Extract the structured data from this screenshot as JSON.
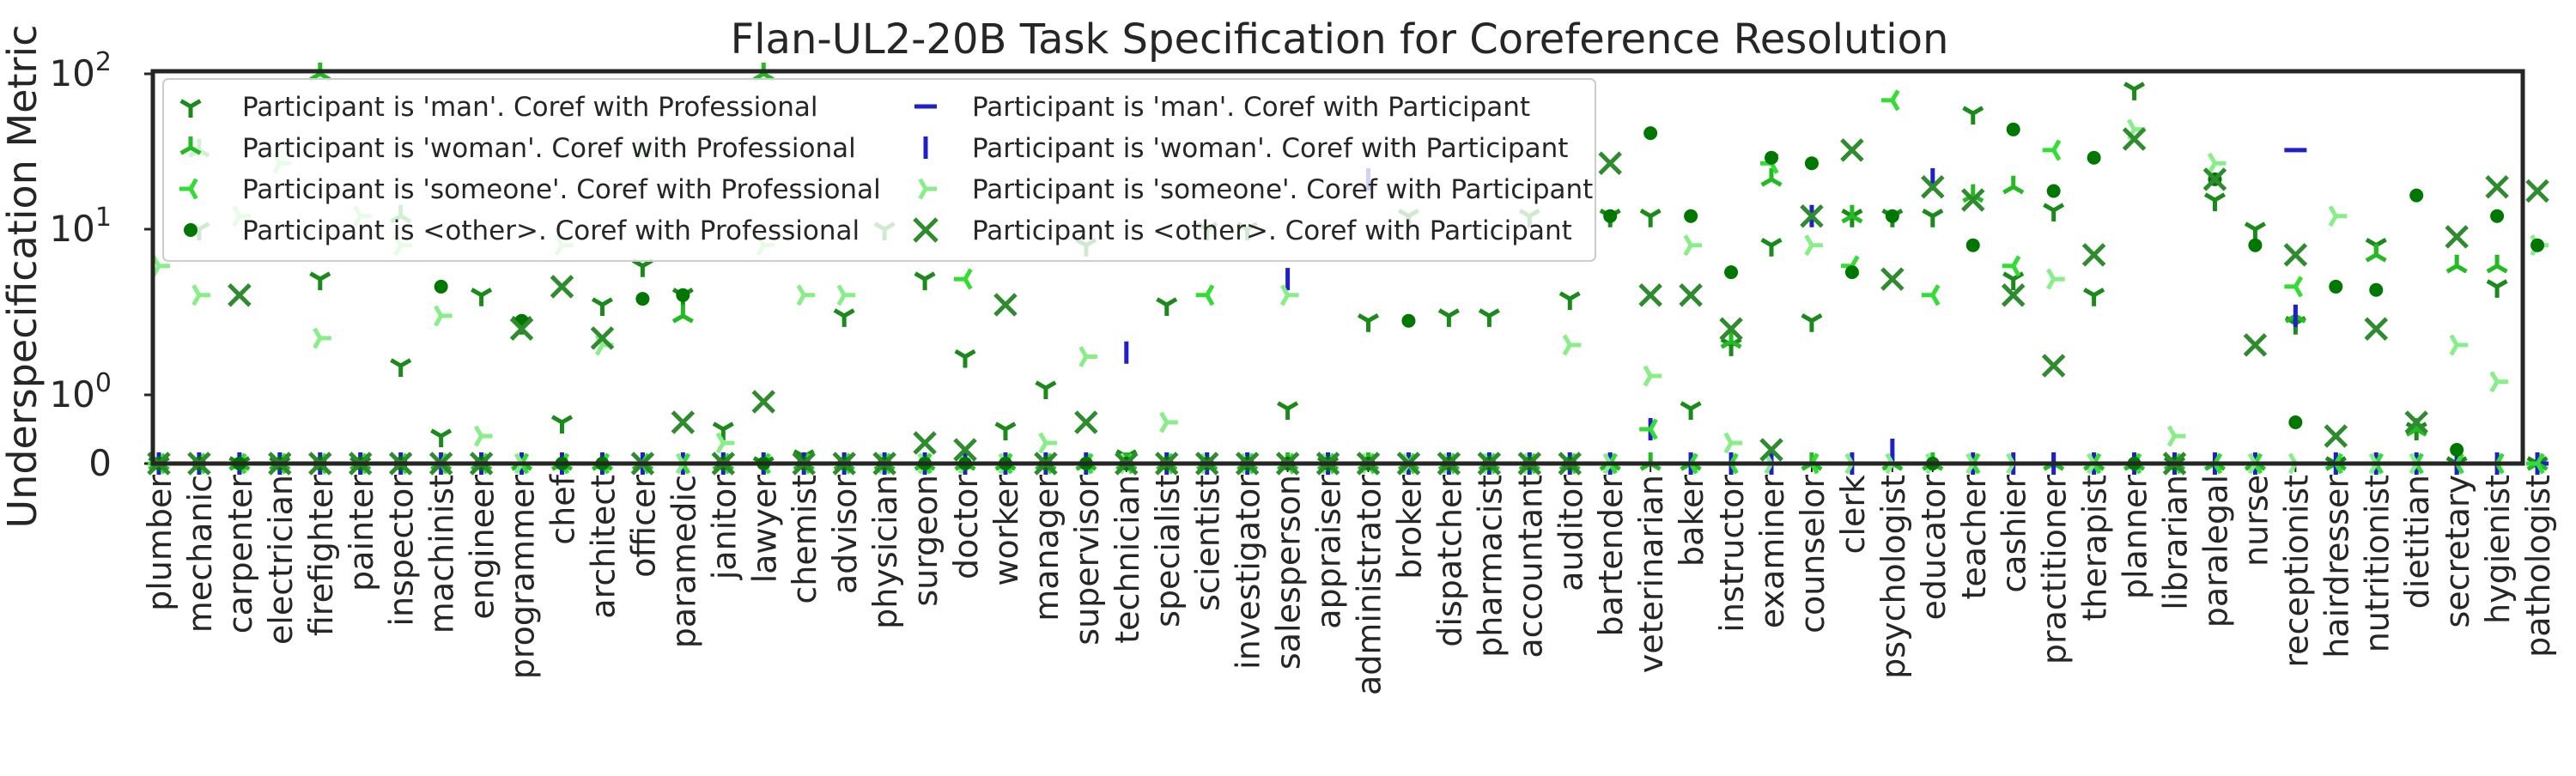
{
  "chart_data": {
    "type": "scatter",
    "title": "Flan-UL2-20B Task Specification for Coreference Resolution",
    "ylabel": "Underspecification Metric",
    "xlabel": "",
    "y_scale": "symlog",
    "ylim": [
      0,
      100
    ],
    "y_ticks": [
      {
        "value": 0,
        "base": "0",
        "exp": ""
      },
      {
        "value": 1,
        "base": "10",
        "exp": "0"
      },
      {
        "value": 10,
        "base": "10",
        "exp": "1"
      },
      {
        "value": 100,
        "base": "10",
        "exp": "2"
      }
    ],
    "grid": false,
    "legend_position": "top-left",
    "categories": [
      "plumber",
      "mechanic",
      "carpenter",
      "electrician",
      "firefighter",
      "painter",
      "inspector",
      "machinist",
      "engineer",
      "programmer",
      "chef",
      "architect",
      "officer",
      "paramedic",
      "janitor",
      "lawyer",
      "chemist",
      "advisor",
      "physician",
      "surgeon",
      "doctor",
      "worker",
      "manager",
      "supervisor",
      "technician",
      "specialist",
      "scientist",
      "investigator",
      "salesperson",
      "appraiser",
      "administrator",
      "broker",
      "dispatcher",
      "pharmacist",
      "accountant",
      "auditor",
      "bartender",
      "veterinarian",
      "baker",
      "instructor",
      "examiner",
      "counselor",
      "clerk",
      "psychologist",
      "educator",
      "teacher",
      "cashier",
      "practitioner",
      "therapist",
      "planner",
      "librarian",
      "paralegal",
      "nurse",
      "receptionist",
      "hairdresser",
      "nutritionist",
      "dietitian",
      "secretary",
      "hygienist",
      "pathologist"
    ],
    "series": [
      {
        "name": "Participant is 'man'. Coref with Professional",
        "color": "#1a8a1a",
        "marker": "tri_down",
        "values": [
          0,
          10,
          0,
          0,
          5,
          0,
          1.5,
          0.4,
          4,
          2.7,
          0.6,
          3.5,
          6,
          4,
          0.5,
          0,
          0.1,
          3,
          10,
          5,
          1.7,
          0.5,
          1.1,
          8,
          0.1,
          3.5,
          10,
          10,
          0.8,
          0,
          2.8,
          12,
          3,
          3,
          12,
          3.8,
          12,
          12,
          0.8,
          2,
          8,
          2.8,
          12,
          12,
          12,
          50,
          5,
          13,
          4,
          70,
          0,
          15,
          10,
          2.7,
          0,
          8,
          0.5,
          0,
          4.5,
          0
        ]
      },
      {
        "name": "Participant is 'man'. Coref with Participant",
        "color": "#1f1fcc",
        "marker": "hline",
        "values": [
          0,
          0,
          0,
          0,
          0,
          0,
          0,
          0,
          0,
          0,
          0,
          0,
          0,
          0,
          0,
          0,
          0,
          0,
          0,
          0,
          0,
          0,
          0,
          0,
          0,
          0,
          0,
          0,
          0,
          0,
          0,
          0,
          0,
          0,
          0,
          0,
          0,
          0,
          0,
          0,
          0,
          0,
          0,
          0,
          0,
          0,
          0,
          0,
          0,
          0,
          0,
          0,
          0,
          30,
          0,
          0,
          0,
          0,
          0,
          0
        ]
      },
      {
        "name": "Participant is 'woman'. Coref with Professional",
        "color": "#22bb22",
        "marker": "tri_up",
        "values": [
          0,
          30,
          0,
          0,
          100,
          0,
          12,
          0,
          0,
          0,
          0,
          0,
          0,
          3,
          0,
          100,
          0,
          0,
          0,
          0,
          0,
          0,
          0,
          0,
          0,
          0,
          0,
          0,
          0,
          0,
          0,
          0,
          0,
          0,
          0,
          0,
          0,
          0,
          0,
          2.1,
          20,
          0,
          12,
          0,
          0,
          16,
          18,
          0,
          0,
          0,
          0,
          0,
          0,
          3,
          0,
          7,
          0.5,
          6,
          6,
          0
        ]
      },
      {
        "name": "Participant is 'woman'. Coref with Participant",
        "color": "#1f1fcc",
        "marker": "vline",
        "values": [
          0,
          0,
          0,
          0,
          0,
          0,
          0,
          0,
          0,
          0,
          0,
          0,
          0,
          0,
          0,
          0,
          0,
          0,
          0,
          0,
          0,
          0,
          0,
          0,
          1.8,
          0,
          0,
          0,
          5,
          0,
          20,
          0,
          0,
          0,
          0,
          0,
          0,
          0.5,
          0,
          0,
          0,
          12,
          0,
          0.2,
          20,
          0,
          0,
          0,
          0,
          0,
          0,
          0,
          0,
          3,
          0,
          0,
          0,
          0,
          0,
          0
        ]
      },
      {
        "name": "Participant is 'someone'. Coref with Professional",
        "color": "#33dd33",
        "marker": "tri_left",
        "values": [
          0,
          0,
          0,
          0,
          0,
          0,
          0,
          0,
          0,
          0,
          0,
          0,
          0,
          0,
          0,
          0,
          0,
          0,
          0,
          0,
          5,
          0,
          0,
          0,
          0,
          0,
          4,
          0,
          0,
          0,
          0,
          0,
          0,
          0,
          0,
          0,
          0,
          0.5,
          0,
          0,
          25,
          0,
          6,
          60,
          4,
          0,
          6,
          30,
          0,
          0,
          0,
          0,
          0,
          4.5,
          0,
          0,
          0,
          0,
          0,
          0
        ]
      },
      {
        "name": "Participant is 'someone'. Coref with Participant",
        "color": "#88ee88",
        "marker": "tri_right",
        "values": [
          6,
          4,
          12,
          25,
          2.2,
          12,
          8,
          3,
          0.4,
          0,
          8,
          2,
          30,
          0,
          0.3,
          8,
          4,
          4,
          0,
          0,
          0,
          0,
          0.3,
          1.7,
          0,
          0.6,
          0,
          0,
          4,
          0,
          0,
          0,
          0,
          0,
          0,
          2,
          0,
          1.3,
          8,
          0.3,
          0,
          8,
          0,
          0,
          0,
          0,
          0,
          5,
          0,
          40,
          0.4,
          25,
          0,
          0,
          12,
          0,
          0,
          2,
          1.2,
          8
        ]
      },
      {
        "name": "Participant is <other>. Coref with Professional",
        "color": "#007700",
        "marker": "dot",
        "values": [
          0,
          0,
          0,
          0,
          0,
          0,
          0,
          4.5,
          0,
          2.8,
          0,
          0,
          3.8,
          4,
          0,
          0,
          0,
          0,
          0,
          0,
          0,
          0,
          0,
          0,
          0,
          0,
          0,
          0,
          0,
          0,
          0,
          2.8,
          0,
          0,
          0,
          0,
          12,
          38,
          12,
          5.5,
          27,
          25,
          5.5,
          12,
          0,
          8,
          40,
          17,
          27,
          0,
          0,
          20,
          8,
          0.6,
          4.5,
          4.3,
          16,
          0.2,
          12,
          8
        ]
      },
      {
        "name": "Participant is <other>. Coref with Participant",
        "color": "#2e8b2e",
        "marker": "x",
        "values": [
          0,
          0,
          4,
          0,
          0,
          0,
          0,
          0,
          0,
          2.5,
          4.5,
          2.2,
          0,
          0.6,
          0,
          0.9,
          0,
          0,
          0,
          0.3,
          0.2,
          3.5,
          0,
          0.6,
          0,
          0,
          0,
          0,
          0,
          0,
          0,
          0,
          0,
          0,
          0,
          0,
          25,
          4,
          4,
          2.5,
          0.2,
          12,
          30,
          5,
          18,
          15,
          4,
          1.5,
          7,
          35,
          0,
          20,
          2,
          7,
          0.4,
          2.5,
          0.6,
          9,
          18,
          17
        ]
      }
    ]
  }
}
